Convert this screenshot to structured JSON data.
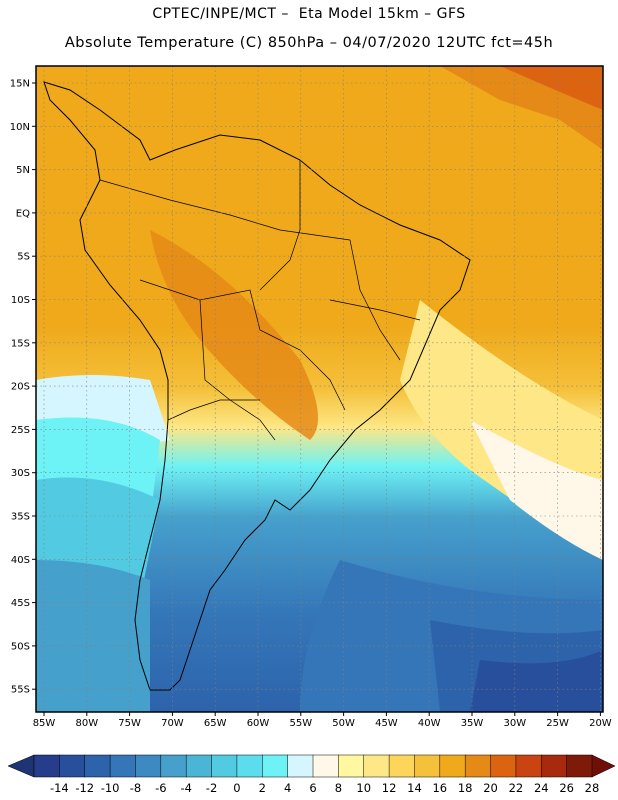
{
  "title_line1": "CPTEC/INPE/MCT –  Eta Model 15km – GFS",
  "title_line2": "Absolute Temperature (C) 850hPa – 04/07/2020 12UTC fct=45h",
  "lat_labels": [
    "15N",
    "10N",
    "5N",
    "EQ",
    "5S",
    "10S",
    "15S",
    "20S",
    "25S",
    "30S",
    "35S",
    "40S",
    "45S",
    "50S",
    "55S"
  ],
  "lon_labels": [
    "85W",
    "80W",
    "75W",
    "70W",
    "65W",
    "60W",
    "55W",
    "50W",
    "45W",
    "40W",
    "35W",
    "30W",
    "25W",
    "20W"
  ],
  "colorbar": {
    "labels": [
      "-14",
      "-12",
      "-10",
      "-8",
      "-6",
      "-4",
      "-2",
      "0",
      "2",
      "4",
      "6",
      "8",
      "10",
      "12",
      "14",
      "16",
      "18",
      "20",
      "22",
      "24",
      "26",
      "28"
    ],
    "colors": [
      "#253d8a",
      "#284f9b",
      "#2d63ab",
      "#3476b8",
      "#3d8ac3",
      "#46a0cc",
      "#4bb5d6",
      "#52cbe2",
      "#5cdded",
      "#6df2f5",
      "#d6f6ff",
      "#fff8e8",
      "#fff8a0",
      "#fde787",
      "#fcd55a",
      "#f5c03a",
      "#efa91a",
      "#e58a16",
      "#dc6410",
      "#c94410",
      "#a82a0c",
      "#7d1a08"
    ],
    "under_color": "#1f3474",
    "over_color": "#6e1006"
  }
}
